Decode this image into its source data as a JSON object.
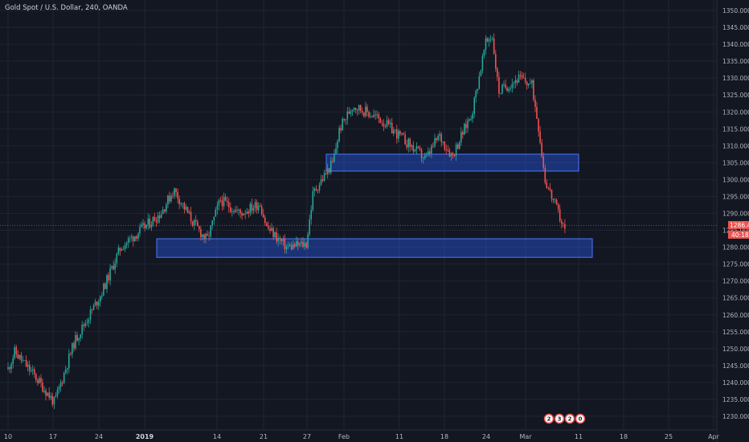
{
  "header": {
    "title": "Gold Spot / U.S. Dollar, 240, OANDA"
  },
  "colors": {
    "background": "#131722",
    "grid": "#1f2433",
    "up": "#26a69a",
    "down": "#ef5350",
    "zone_fill": "#2962ff",
    "zone_stroke": "#4a78ff",
    "price_line": "#ef5350",
    "axis_text": "#b2b5be"
  },
  "price_axis": {
    "labels": [
      "1350.000",
      "1345.000",
      "1340.000",
      "1335.000",
      "1330.000",
      "1325.000",
      "1320.000",
      "1315.000",
      "1310.000",
      "1305.000",
      "1300.000",
      "1295.000",
      "1290.000",
      "1285.000",
      "1280.000",
      "1275.000",
      "1270.000",
      "1265.000",
      "1260.000",
      "1255.000",
      "1250.000",
      "1245.000",
      "1240.000",
      "1235.000",
      "1230.000"
    ]
  },
  "time_axis": {
    "labels": [
      {
        "text": "10",
        "bold": false
      },
      {
        "text": "17",
        "bold": false
      },
      {
        "text": "24",
        "bold": false
      },
      {
        "text": "2019",
        "bold": true
      },
      {
        "text": "14",
        "bold": false
      },
      {
        "text": "21",
        "bold": false
      },
      {
        "text": "27",
        "bold": false
      },
      {
        "text": "Feb",
        "bold": false
      },
      {
        "text": "11",
        "bold": false
      },
      {
        "text": "18",
        "bold": false
      },
      {
        "text": "24",
        "bold": false
      },
      {
        "text": "Mar",
        "bold": false
      },
      {
        "text": "11",
        "bold": false
      },
      {
        "text": "18",
        "bold": false
      },
      {
        "text": "25",
        "bold": false
      },
      {
        "text": "Apr",
        "bold": false
      }
    ]
  },
  "price_tag": {
    "price": "1286.480",
    "countdown": "40:18"
  },
  "badges": [
    "2",
    "3",
    "2",
    "0"
  ],
  "chart_data": {
    "type": "candlestick",
    "symbol": "Gold Spot / U.S. Dollar",
    "timeframe": "240",
    "source": "OANDA",
    "ylim": [
      1227,
      1353
    ],
    "current_price": 1286.48,
    "zones": [
      {
        "name": "support-zone",
        "y_low": 1277,
        "y_high": 1282.5,
        "x_start": "Jan 2",
        "x_end": "Mar 8"
      },
      {
        "name": "resistance-zone",
        "y_low": 1302.5,
        "y_high": 1307.5,
        "x_start": "Jan 29",
        "x_end": "Mar 6"
      }
    ],
    "swing_points": [
      {
        "date": "Dec 10",
        "price": 1244
      },
      {
        "date": "Dec 11",
        "price": 1249
      },
      {
        "date": "Dec 14",
        "price": 1242
      },
      {
        "date": "Dec 17",
        "price": 1234
      },
      {
        "date": "Dec 20",
        "price": 1252
      },
      {
        "date": "Dec 24",
        "price": 1266
      },
      {
        "date": "Dec 27",
        "price": 1280
      },
      {
        "date": "Jan 2",
        "price": 1290
      },
      {
        "date": "Jan 4",
        "price": 1297
      },
      {
        "date": "Jan 7",
        "price": 1287
      },
      {
        "date": "Jan 9",
        "price": 1282
      },
      {
        "date": "Jan 11",
        "price": 1294
      },
      {
        "date": "Jan 14",
        "price": 1290
      },
      {
        "date": "Jan 17",
        "price": 1293
      },
      {
        "date": "Jan 18",
        "price": 1286
      },
      {
        "date": "Jan 21",
        "price": 1280
      },
      {
        "date": "Jan 24",
        "price": 1281
      },
      {
        "date": "Jan 25",
        "price": 1296
      },
      {
        "date": "Jan 28",
        "price": 1305
      },
      {
        "date": "Jan 29",
        "price": 1315
      },
      {
        "date": "Jan 31",
        "price": 1322
      },
      {
        "date": "Feb 4",
        "price": 1318
      },
      {
        "date": "Feb 7",
        "price": 1313
      },
      {
        "date": "Feb 11",
        "price": 1306
      },
      {
        "date": "Feb 13",
        "price": 1313
      },
      {
        "date": "Feb 15",
        "price": 1307
      },
      {
        "date": "Feb 18",
        "price": 1320
      },
      {
        "date": "Feb 20",
        "price": 1340
      },
      {
        "date": "Feb 21",
        "price": 1343
      },
      {
        "date": "Feb 22",
        "price": 1326
      },
      {
        "date": "Feb 25",
        "price": 1330
      },
      {
        "date": "Feb 27",
        "price": 1328
      },
      {
        "date": "Feb 28",
        "price": 1316
      },
      {
        "date": "Mar 1",
        "price": 1300
      },
      {
        "date": "Mar 4",
        "price": 1285
      }
    ]
  }
}
